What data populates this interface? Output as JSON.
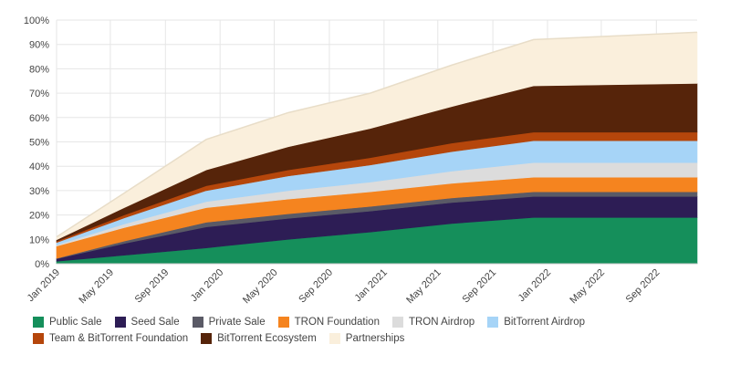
{
  "chart_data": {
    "type": "area",
    "stacked": true,
    "title": "",
    "xlabel": "",
    "ylabel": "",
    "ylim": [
      0,
      100
    ],
    "grid": true,
    "legend_position": "bottom",
    "y_ticks": [
      "0%",
      "10%",
      "20%",
      "30%",
      "40%",
      "50%",
      "60%",
      "70%",
      "80%",
      "90%",
      "100%"
    ],
    "x_ticks": [
      "Jan 2019",
      "May 2019",
      "Sep 2019",
      "Jan 2020",
      "May 2020",
      "Sep 2020",
      "Jan 2021",
      "May 2021",
      "Sep 2021",
      "Jan 2022",
      "May 2022",
      "Sep 2022"
    ],
    "x": [
      "2019-01",
      "2019-06",
      "2019-12",
      "2020-06",
      "2020-12",
      "2021-06",
      "2021-12",
      "2022-12"
    ],
    "series": [
      {
        "name": "Public Sale",
        "color": "#158f5b",
        "values": [
          1.0,
          3.5,
          6.5,
          10.0,
          13.0,
          16.5,
          19.0,
          19.0
        ]
      },
      {
        "name": "Seed Sale",
        "color": "#2d1d55",
        "values": [
          1.0,
          4.8,
          8.6,
          8.6,
          8.6,
          8.6,
          8.6,
          8.6
        ]
      },
      {
        "name": "Private Sale",
        "color": "#5a5a66",
        "values": [
          0.2,
          1.0,
          1.9,
          1.9,
          1.9,
          1.9,
          1.9,
          1.9
        ]
      },
      {
        "name": "TRON Foundation",
        "color": "#f5841f",
        "values": [
          5.0,
          5.5,
          6.0,
          6.0,
          6.0,
          6.0,
          6.0,
          6.0
        ]
      },
      {
        "name": "TRON Airdrop",
        "color": "#dcdcdc",
        "values": [
          0.5,
          1.5,
          2.5,
          3.5,
          4.0,
          5.0,
          6.0,
          6.0
        ]
      },
      {
        "name": "BitTorrent Airdrop",
        "color": "#a6d4f7",
        "values": [
          1.0,
          2.5,
          4.5,
          6.0,
          7.0,
          8.0,
          9.0,
          9.0
        ]
      },
      {
        "name": "Team & BitTorrent Foundation",
        "color": "#b5460b",
        "values": [
          0.5,
          1.2,
          2.0,
          2.5,
          3.0,
          3.5,
          3.5,
          3.5
        ]
      },
      {
        "name": "BitTorrent Ecosystem",
        "color": "#56240a",
        "values": [
          0.6,
          3.0,
          6.5,
          9.5,
          12.0,
          15.0,
          19.0,
          20.0
        ]
      },
      {
        "name": "Partnerships",
        "color": "#faefdc",
        "values": [
          1.2,
          6.0,
          12.5,
          14.0,
          14.5,
          17.0,
          19.0,
          21.0
        ]
      }
    ]
  }
}
